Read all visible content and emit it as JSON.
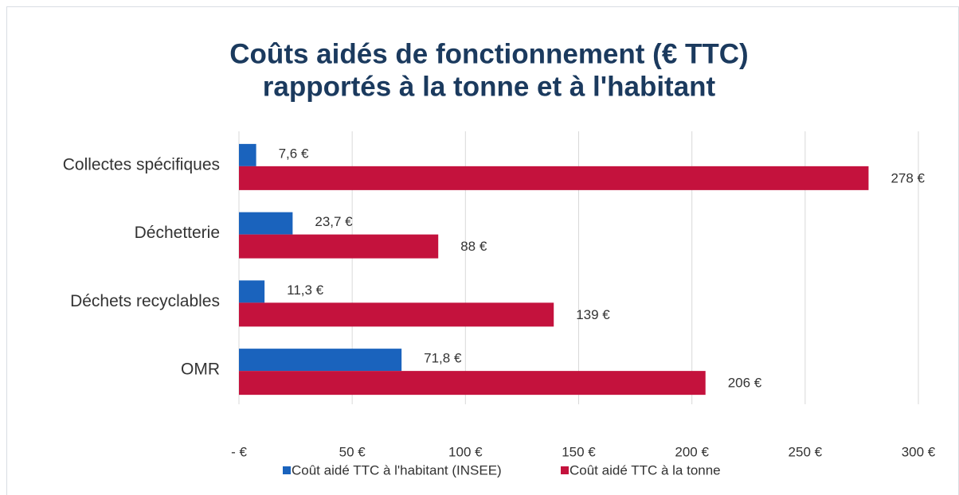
{
  "chart_data": {
    "type": "hbar",
    "title": [
      "Coûts aidés de fonctionnement (€ TTC)",
      "rapportés à la tonne et à l'habitant"
    ],
    "categories": [
      "Collectes spécifiques",
      "Déchetterie",
      "Déchets recyclables",
      "OMR"
    ],
    "series": [
      {
        "name": "Coût aidé TTC à l'habitant (INSEE)",
        "color": "#1a63bd",
        "values": [
          7.6,
          23.7,
          11.3,
          71.8
        ],
        "value_labels": [
          "7,6 €",
          "23,7 €",
          "11,3 €",
          "71,8 €"
        ]
      },
      {
        "name": "Coût aidé TTC à la tonne",
        "color": "#c4123d",
        "values": [
          278,
          88,
          139,
          206
        ],
        "value_labels": [
          "278 €",
          "88 €",
          "139 €",
          "206 €"
        ]
      }
    ],
    "xlim": [
      0,
      300
    ],
    "xticks": [
      {
        "value": 0,
        "label": "-   €"
      },
      {
        "value": 50,
        "label": "50 €"
      },
      {
        "value": 100,
        "label": "100 €"
      },
      {
        "value": 150,
        "label": "150 €"
      },
      {
        "value": 200,
        "label": "200 €"
      },
      {
        "value": 250,
        "label": "250 €"
      },
      {
        "value": 300,
        "label": "300 €"
      }
    ],
    "grid": true,
    "legend": "bottom"
  }
}
